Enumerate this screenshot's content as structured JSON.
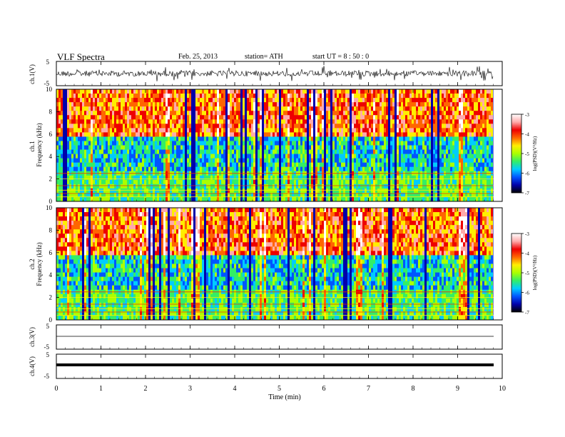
{
  "header": {
    "title": "VLF  Spectra",
    "date": "Feb. 25, 2013",
    "station": "station= ATH",
    "start": "start  UT  =   8  : 50 : 0"
  },
  "chart_data": [
    {
      "type": "line",
      "panel": "ch1-waveform",
      "ylabel": "ch.1(V)",
      "ylim": [
        -5,
        5
      ],
      "yticks": [
        "5",
        "-5"
      ],
      "note_values": "noisy waveform, amplitude roughly ±2 V around 0"
    },
    {
      "type": "heatmap",
      "panel": "ch1-spectrogram",
      "ylabel_channel": "ch.1",
      "ylabel": "Frequency  (kHz)",
      "ylim": [
        0,
        10
      ],
      "yticks": [
        "0",
        "2",
        "4",
        "6",
        "8",
        "10"
      ],
      "colorbar": {
        "label": "log(PSD)(V²/Hz)",
        "range": [
          -7,
          -3
        ],
        "ticks": [
          "-3",
          "-4",
          "-5",
          "-6",
          "-7"
        ],
        "colors": [
          "#000000",
          "#0000aa",
          "#0055ff",
          "#00ccff",
          "#33ee66",
          "#aaff00",
          "#ffee00",
          "#ff6600",
          "#ee0000",
          "#ffaaaa",
          "#ffffff"
        ]
      }
    },
    {
      "type": "heatmap",
      "panel": "ch2-spectrogram",
      "ylabel_channel": "ch.2",
      "ylabel": "Frequency  (kHz)",
      "ylim": [
        0,
        10
      ],
      "yticks": [
        "0",
        "2",
        "4",
        "6",
        "8",
        "10"
      ],
      "colorbar": {
        "label": "log(PSD)(V²/Hz)",
        "range": [
          -7,
          -3
        ],
        "ticks": [
          "-3",
          "-4",
          "-5",
          "-6",
          "-7"
        ]
      }
    },
    {
      "type": "line",
      "panel": "ch3-waveform",
      "ylabel": "ch.3(V)",
      "ylim": [
        -5,
        5
      ],
      "yticks": [
        "5",
        "-5"
      ],
      "note_values": "flat near -0.5 V"
    },
    {
      "type": "line",
      "panel": "ch4-waveform",
      "ylabel": "ch.4(V)",
      "ylim": [
        -5,
        5
      ],
      "yticks": [
        "5",
        "-5"
      ],
      "note_values": "thick flat band near -1 V"
    }
  ],
  "xaxis": {
    "label": "Time  (min)",
    "range": [
      0,
      10
    ],
    "ticks": [
      "0",
      "1",
      "2",
      "3",
      "4",
      "5",
      "6",
      "7",
      "8",
      "9",
      "10"
    ],
    "data_end": 9.8
  }
}
